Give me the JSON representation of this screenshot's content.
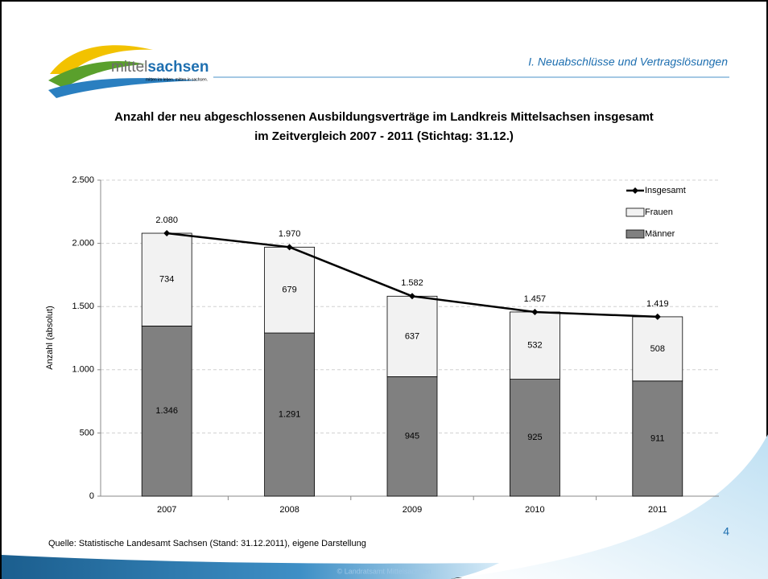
{
  "slide": {
    "section": "I. Neuabschlüsse und Vertragslösungen",
    "logo": {
      "name": [
        "mittel",
        "sachsen"
      ],
      "slogan": "mitten im leben. mitten in sachsen."
    },
    "source": "Quelle: Statistische Landesamt Sachsen (Stand: 31.12.2011), eigene Darstellung",
    "page_number": "4",
    "footer": "© Landratsamt Mittelsachsen"
  },
  "chart_data": {
    "type": "stacked-bar-line",
    "title": [
      "Anzahl der neu abgeschlossenen Ausbildungsverträge im Landkreis Mittelsachsen insgesamt",
      "im Zeitvergleich 2007 - 2011 (Stichtag: 31.12.)"
    ],
    "y_label": "Anzahl (absolut)",
    "categories": [
      "2007",
      "2008",
      "2009",
      "2010",
      "2011"
    ],
    "series": [
      {
        "name": "Männer",
        "kind": "bar",
        "color": "#808080",
        "values": [
          1346,
          1291,
          945,
          925,
          911
        ],
        "value_labels": [
          "1.346",
          "1.291",
          "945",
          "925",
          "911"
        ]
      },
      {
        "name": "Frauen",
        "kind": "bar",
        "color": "#f2f2f2",
        "values": [
          734,
          679,
          637,
          532,
          508
        ]
      },
      {
        "name": "Insgesamt",
        "kind": "line",
        "color": "#000000",
        "values": [
          2080,
          1970,
          1582,
          1457,
          1419
        ],
        "value_labels": [
          "2.080",
          "1.970",
          "1.582",
          "1.457",
          "1.419"
        ]
      }
    ],
    "ylim": [
      0,
      2500
    ],
    "yticks": [
      0,
      500,
      {
        "value": 1000,
        "label": "1.000"
      },
      {
        "value": 1500,
        "label": "1.500"
      },
      {
        "value": 2000,
        "label": "2.000"
      },
      {
        "value": 2500,
        "label": "2.500"
      }
    ],
    "grid": true,
    "legend": "top-right"
  }
}
